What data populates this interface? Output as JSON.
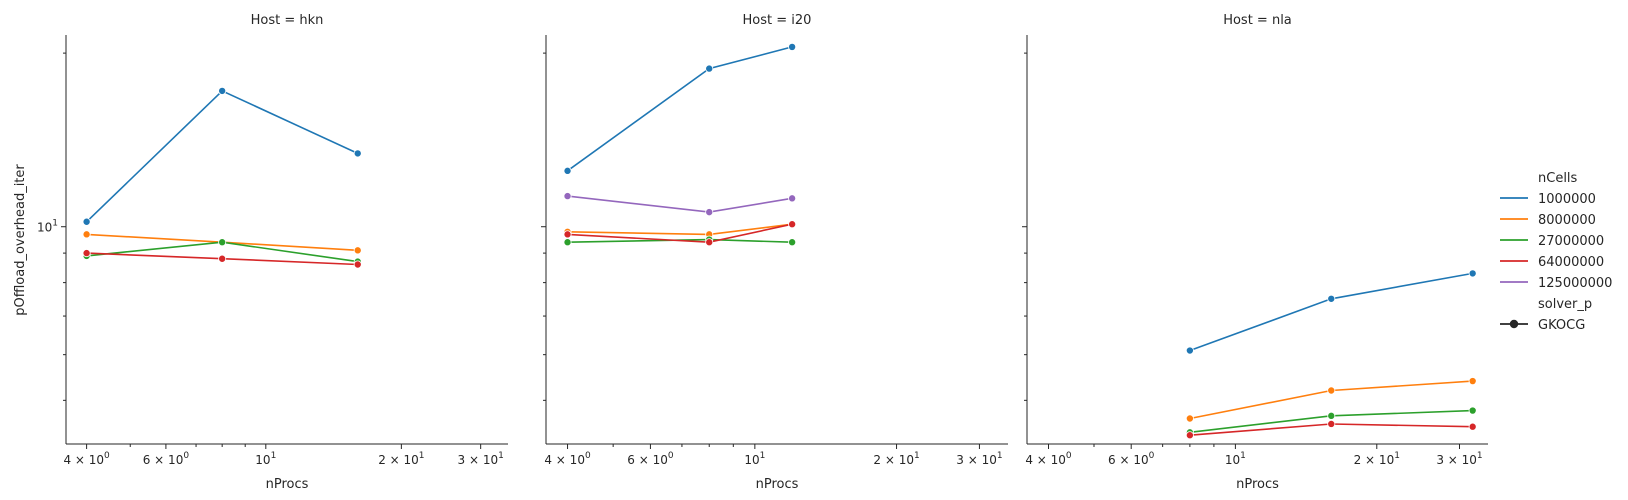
{
  "chart_data": {
    "type": "line",
    "x_scale": "log",
    "y_scale": "log",
    "xlim": [
      3.6,
      34.5
    ],
    "ylim": [
      4.2,
      21.5
    ],
    "x_ticks": [
      {
        "value": 4,
        "label": "4 × 10^0"
      },
      {
        "value": 6,
        "label": "6 × 10^0"
      },
      {
        "value": 10,
        "label": "10^1"
      },
      {
        "value": 20,
        "label": "2 × 10^1"
      },
      {
        "value": 30,
        "label": "3 × 10^1"
      }
    ],
    "y_ticks": [
      {
        "value": 10,
        "label": "10^1"
      }
    ],
    "xlabel": "nProcs",
    "ylabel": "pOffload_overhead_iter",
    "grid": false,
    "legend_placement": "right",
    "hue_title": "nCells",
    "style_title": "solver_p",
    "style_entries": [
      "GKOCG"
    ],
    "series_colors": {
      "1000000": "#1f77b4",
      "8000000": "#ff7f0e",
      "27000000": "#2ca02c",
      "64000000": "#d62728",
      "125000000": "#9467bd"
    },
    "facets": [
      {
        "title": "Host = hkn",
        "series": [
          {
            "name": "1000000",
            "x": [
              4,
              8,
              16
            ],
            "y": [
              10.2,
              17.2,
              13.4
            ]
          },
          {
            "name": "8000000",
            "x": [
              4,
              8,
              16
            ],
            "y": [
              9.7,
              9.4,
              9.1
            ]
          },
          {
            "name": "27000000",
            "x": [
              4,
              8,
              16
            ],
            "y": [
              8.9,
              9.4,
              8.7
            ]
          },
          {
            "name": "64000000",
            "x": [
              4,
              8,
              16
            ],
            "y": [
              9.0,
              8.8,
              8.6
            ]
          }
        ]
      },
      {
        "title": "Host = i20",
        "series": [
          {
            "name": "1000000",
            "x": [
              4,
              8,
              12
            ],
            "y": [
              12.5,
              18.8,
              20.5
            ]
          },
          {
            "name": "8000000",
            "x": [
              4,
              8,
              12
            ],
            "y": [
              9.8,
              9.7,
              10.1
            ]
          },
          {
            "name": "27000000",
            "x": [
              4,
              8,
              12
            ],
            "y": [
              9.4,
              9.5,
              9.4
            ]
          },
          {
            "name": "64000000",
            "x": [
              4,
              8,
              12
            ],
            "y": [
              9.7,
              9.4,
              10.1
            ]
          },
          {
            "name": "125000000",
            "x": [
              4,
              8,
              12
            ],
            "y": [
              11.3,
              10.6,
              11.2
            ]
          }
        ]
      },
      {
        "title": "Host = nla",
        "series": [
          {
            "name": "1000000",
            "x": [
              8,
              16,
              32
            ],
            "y": [
              6.1,
              7.5,
              8.3
            ]
          },
          {
            "name": "8000000",
            "x": [
              8,
              16,
              32
            ],
            "y": [
              4.65,
              5.2,
              5.4
            ]
          },
          {
            "name": "27000000",
            "x": [
              8,
              16,
              32
            ],
            "y": [
              4.4,
              4.7,
              4.8
            ]
          },
          {
            "name": "64000000",
            "x": [
              8,
              16,
              32
            ],
            "y": [
              4.35,
              4.55,
              4.5
            ]
          }
        ]
      }
    ]
  }
}
